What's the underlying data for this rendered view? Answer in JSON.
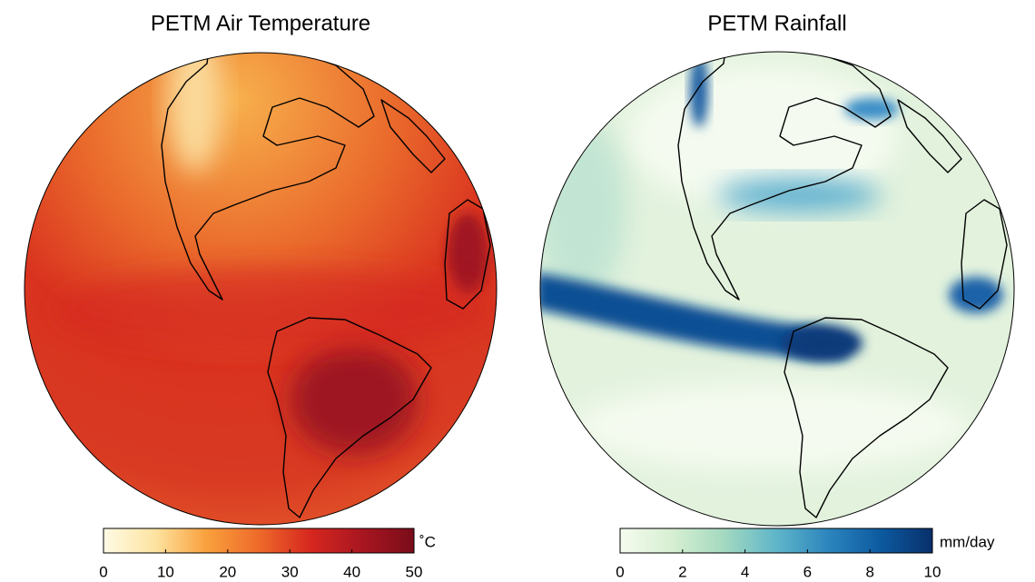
{
  "panels": [
    {
      "title": "PETM Air Temperature",
      "colorbar": {
        "lim": [
          0,
          50
        ],
        "ticks": [
          0,
          10,
          20,
          30,
          40,
          50
        ],
        "unit": "˚C",
        "colors": [
          "#fffbe6",
          "#fde3a0",
          "#f9a03c",
          "#ee6a2a",
          "#d6271f",
          "#a81620",
          "#7a0c1a"
        ]
      }
    },
    {
      "title": "PETM Rainfall",
      "colorbar": {
        "lim": [
          0,
          10
        ],
        "ticks": [
          0,
          2,
          4,
          6,
          8,
          10
        ],
        "unit": "mm/day",
        "colors": [
          "#f5fbef",
          "#d7efd2",
          "#a3d9c0",
          "#5fb6c9",
          "#2c85bd",
          "#0c5aa0",
          "#08306b"
        ]
      }
    }
  ]
}
